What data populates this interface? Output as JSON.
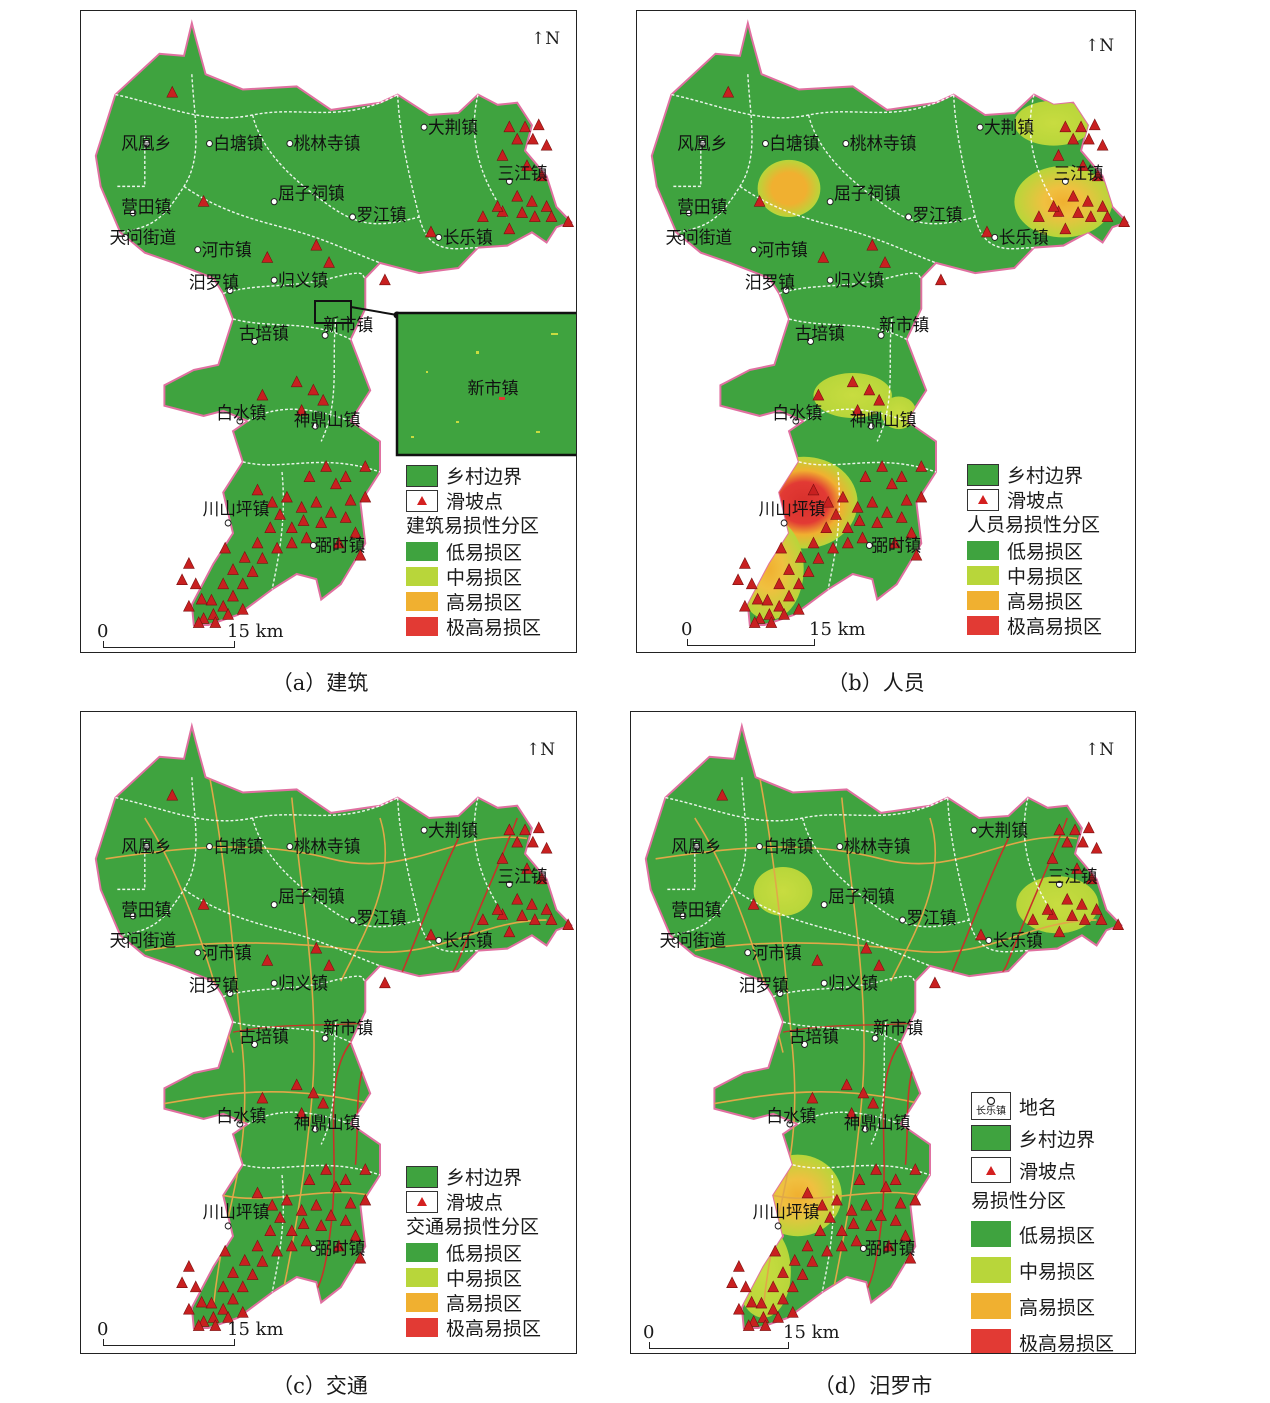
{
  "legend_colors": {
    "low": "#3fa33f",
    "mid": "#b8d63a",
    "high": "#f0b030",
    "very_high": "#e23a34",
    "landslide": "#c82020",
    "boundary": "#ffffff",
    "road_main": "#c83228",
    "road_minor": "#e0a848"
  },
  "icons": {
    "boundary": "village-boundary-icon",
    "landslide": "red-triangle-icon",
    "place": "town-circle-icon",
    "north": "north-arrow-icon"
  },
  "common": {
    "north": "N",
    "scale_zero": "0",
    "scale_end": "15 km",
    "boundary_label": "乡村边界",
    "landslide_label": "滑坡点",
    "zone_low": "低易损区",
    "zone_mid": "中易损区",
    "zone_high": "高易损区",
    "zone_very_high": "极高易损区",
    "place_label": "地名",
    "place_sample": "长乐镇"
  },
  "towns": [
    "风凰乡",
    "白塘镇",
    "桃林寺镇",
    "大荆镇",
    "三江镇",
    "营田镇",
    "屈子祠镇",
    "罗江镇",
    "长乐镇",
    "天问街道",
    "河市镇",
    "汨罗镇",
    "归义镇",
    "古培镇",
    "新市镇",
    "白水镇",
    "神鼎山镇",
    "川山坪镇",
    "弼时镇"
  ],
  "panels": [
    {
      "caption": "（a）建筑",
      "legend_title": "建筑易损性分区",
      "inset_label": "新市镇"
    },
    {
      "caption": "（b）人员",
      "legend_title": "人员易损性分区"
    },
    {
      "caption": "（c）交通",
      "legend_title": "交通易损性分区"
    },
    {
      "caption": "（d）汨罗市",
      "legend_title": "易损性分区"
    }
  ],
  "hotspots": {
    "b": [
      {
        "town": "屈子祠镇",
        "level": "high"
      },
      {
        "town": "三江镇",
        "level": "high"
      },
      {
        "town": "白水镇",
        "level": "mid"
      },
      {
        "town": "神鼎山镇",
        "level": "mid"
      },
      {
        "town": "川山坪镇",
        "level": "very_high"
      }
    ],
    "d": [
      {
        "town": "屈子祠镇",
        "level": "mid"
      },
      {
        "town": "三江镇",
        "level": "mid"
      },
      {
        "town": "川山坪镇",
        "level": "high"
      }
    ]
  }
}
